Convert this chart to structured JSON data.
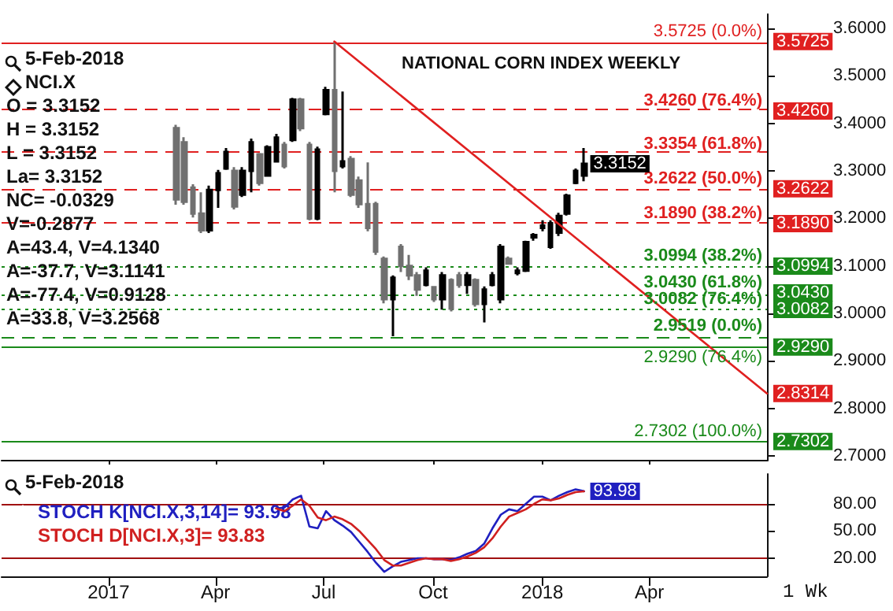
{
  "chart_data": [
    {
      "type": "candlestick",
      "title": "NATIONAL CORN INDEX WEEKLY",
      "marker": "none",
      "tick_labels": "y",
      "colors": [
        "#707070",
        "#707070",
        "#707070",
        "#707070",
        "#000000",
        "#000000",
        "#000000",
        "#707070",
        "#000000",
        "#000000",
        "#707070",
        "#000000",
        "#000000",
        "#707070",
        "#000000",
        "#707070",
        "#707070",
        "#000000",
        "#000000",
        "#707070",
        "#000000",
        "#707070",
        "#707070",
        "#707070",
        "#707070",
        "#707070",
        "#000000",
        "#707070",
        "#707070",
        "#707070",
        "#000000",
        "#707070",
        "#000000",
        "#707070",
        "#707070",
        "#000000",
        "#707070",
        "#000000",
        "#000000",
        "#000000",
        "#707070",
        "#000000",
        "#000000",
        "#000000",
        "#000000",
        "#000000",
        "#000000",
        "#000000",
        "#000000",
        "#000000"
      ],
      "x": [
        "2017-02-27",
        "2017-03-06",
        "2017-03-13",
        "2017-03-20",
        "2017-03-27",
        "2017-04-03",
        "2017-04-10",
        "2017-04-17",
        "2017-04-24",
        "2017-05-01",
        "2017-05-08",
        "2017-05-15",
        "2017-05-22",
        "2017-05-29",
        "2017-06-05",
        "2017-06-12",
        "2017-06-19",
        "2017-06-26",
        "2017-07-03",
        "2017-07-10",
        "2017-07-17",
        "2017-07-24",
        "2017-07-31",
        "2017-08-07",
        "2017-08-14",
        "2017-08-21",
        "2017-08-28",
        "2017-09-04",
        "2017-09-11",
        "2017-09-18",
        "2017-09-25",
        "2017-10-02",
        "2017-10-09",
        "2017-10-16",
        "2017-10-23",
        "2017-10-30",
        "2017-11-06",
        "2017-11-13",
        "2017-11-20",
        "2017-11-27",
        "2017-12-04",
        "2017-12-11",
        "2017-12-18",
        "2017-12-25",
        "2018-01-01",
        "2018-01-08",
        "2018-01-15",
        "2018-01-22",
        "2018-01-29",
        "2018-02-05"
      ],
      "ohlc": [
        [
          3.39,
          3.397,
          3.229,
          3.24
        ],
        [
          3.36,
          3.371,
          3.229,
          3.235
        ],
        [
          3.265,
          3.272,
          3.202,
          3.21
        ],
        [
          3.21,
          3.255,
          3.169,
          3.175
        ],
        [
          3.175,
          3.269,
          3.169,
          3.26
        ],
        [
          3.26,
          3.302,
          3.222,
          3.295
        ],
        [
          3.305,
          3.348,
          3.302,
          3.34
        ],
        [
          3.3,
          3.308,
          3.219,
          3.225
        ],
        [
          3.25,
          3.308,
          3.245,
          3.3
        ],
        [
          3.3,
          3.368,
          3.255,
          3.36
        ],
        [
          3.335,
          3.338,
          3.269,
          3.275
        ],
        [
          3.29,
          3.354,
          3.288,
          3.35
        ],
        [
          3.32,
          3.378,
          3.318,
          3.37
        ],
        [
          3.355,
          3.361,
          3.305,
          3.31
        ],
        [
          3.365,
          3.454,
          3.361,
          3.45
        ],
        [
          3.45,
          3.454,
          3.384,
          3.39
        ],
        [
          3.355,
          3.361,
          3.196,
          3.2
        ],
        [
          3.2,
          3.351,
          3.196,
          3.345
        ],
        [
          3.42,
          3.477,
          3.417,
          3.47
        ],
        [
          3.47,
          3.5725,
          3.255,
          3.3
        ],
        [
          3.31,
          3.467,
          3.305,
          3.32
        ],
        [
          3.325,
          3.331,
          3.245,
          3.25
        ],
        [
          3.28,
          3.288,
          3.222,
          3.23
        ],
        [
          3.23,
          3.318,
          3.173,
          3.18
        ],
        [
          3.23,
          3.235,
          3.123,
          3.13
        ],
        [
          3.115,
          3.12,
          3.021,
          3.03
        ],
        [
          3.03,
          3.08,
          2.9519,
          3.075
        ],
        [
          3.14,
          3.146,
          3.087,
          3.1
        ],
        [
          3.1,
          3.123,
          3.07,
          3.08
        ],
        [
          3.08,
          3.087,
          3.037,
          3.05
        ],
        [
          3.06,
          3.097,
          3.057,
          3.09
        ],
        [
          3.055,
          3.057,
          3.024,
          3.03
        ],
        [
          3.03,
          3.087,
          3.008,
          3.08
        ],
        [
          3.07,
          3.074,
          3.004,
          3.01
        ],
        [
          3.08,
          3.087,
          3.054,
          3.06
        ],
        [
          3.06,
          3.087,
          3.041,
          3.08
        ],
        [
          3.07,
          3.074,
          3.014,
          3.02
        ],
        [
          3.02,
          3.057,
          2.981,
          3.05
        ],
        [
          3.06,
          3.087,
          3.057,
          3.08
        ],
        [
          3.03,
          3.146,
          3.021,
          3.14
        ],
        [
          3.115,
          3.12,
          3.103,
          3.105
        ],
        [
          3.085,
          3.097,
          3.08,
          3.09
        ],
        [
          3.09,
          3.153,
          3.087,
          3.15
        ],
        [
          3.16,
          3.169,
          3.153,
          3.165
        ],
        [
          3.18,
          3.196,
          3.173,
          3.185
        ],
        [
          3.14,
          3.196,
          3.136,
          3.19
        ],
        [
          3.17,
          3.212,
          3.163,
          3.205
        ],
        [
          3.21,
          3.252,
          3.206,
          3.248
        ],
        [
          3.275,
          3.305,
          3.272,
          3.3
        ],
        [
          3.29,
          3.348,
          3.278,
          3.3152
        ]
      ],
      "series": [
        {
          "type": "line",
          "color": "#e02020",
          "x": [
            "2017-07-10",
            "2018-07-09"
          ],
          "values": [
            3.5725,
            2.8314
          ],
          "value_labels": [
            null,
            "2.8314"
          ]
        }
      ],
      "xlim": [
        "2016-10-03",
        "2018-07-09"
      ],
      "xticks": [
        {
          "value": "2017-01-01",
          "label": null
        },
        {
          "value": "2017-04-01",
          "label": null
        },
        {
          "value": "2017-07-01",
          "label": null
        },
        {
          "value": "2017-10-01",
          "label": null
        },
        {
          "value": "2018-01-01",
          "label": null
        },
        {
          "value": "2018-04-01",
          "label": null
        }
      ],
      "ylim": [
        2.69,
        3.63
      ],
      "yticks": [
        {
          "value": 2.7,
          "label": "2.7000"
        },
        {
          "value": 2.8,
          "label": "2.8000"
        },
        {
          "value": 2.9,
          "label": "2.9000"
        },
        {
          "value": 3.0,
          "label": "3.0000"
        },
        {
          "value": 3.1,
          "label": "3.1000"
        },
        {
          "value": 3.2,
          "label": "3.2000"
        },
        {
          "value": 3.3,
          "label": "3.3000"
        },
        {
          "value": 3.4,
          "label": "3.4000"
        },
        {
          "value": 3.5,
          "label": "3.5000"
        },
        {
          "value": 3.6,
          "label": "3.6000"
        }
      ],
      "ref_lines": [
        {
          "axis": "y",
          "value": 3.5725,
          "label": "3.5725 (0.0%)",
          "color": "#e02020",
          "line_style": "solid"
        },
        {
          "axis": "y",
          "value": 3.426,
          "label": "3.4260 (76.4%)",
          "color": "#e02020",
          "line_style": "dashed"
        },
        {
          "axis": "y",
          "value": 3.3354,
          "label": "3.3354 (61.8%)",
          "color": "#e02020",
          "line_style": "dashed"
        },
        {
          "axis": "y",
          "value": 3.2622,
          "label": "3.2622 (50.0%)",
          "color": "#e02020",
          "line_style": "dashed"
        },
        {
          "axis": "y",
          "value": 3.189,
          "label": "3.1890 (38.2%)",
          "color": "#e02020",
          "line_style": "dashed"
        },
        {
          "axis": "y",
          "value": 3.0994,
          "label": "3.0994 (38.2%)",
          "color": "#1a8a1a",
          "line_style": "dotted"
        },
        {
          "axis": "y",
          "value": 3.043,
          "label": "3.0430 (61.8%)",
          "color": "#1a8a1a",
          "line_style": "dotted"
        },
        {
          "axis": "y",
          "value": 3.0082,
          "label": "3.0082 (76.4%)",
          "color": "#1a8a1a",
          "line_style": "dotted"
        },
        {
          "axis": "y",
          "value": 2.9519,
          "label": "2.9519 (0.0%)",
          "color": "#1a8a1a",
          "line_style": "dashed"
        },
        {
          "axis": "y",
          "value": 2.929,
          "label": "2.9290 (76.4%)",
          "color": "#1a8a1a",
          "line_style": "solid"
        },
        {
          "axis": "y",
          "value": 2.7302,
          "label": "2.7302 (100.0%)",
          "color": "#1a8a1a",
          "line_style": "solid"
        }
      ],
      "annotations": [
        "5-Feb-2018",
        "NCI.X",
        "O = 3.3152",
        "H = 3.3152",
        "L = 3.3152",
        "La= 3.3152",
        "NC= -0.0329",
        "V=-0.2877",
        "A=43.4, V=4.1340",
        "A=-37.7, V=3.1141",
        "A=-77.4, V=0.9128",
        "A=33.8, V=3.2568",
        {
          "text": "3.5725",
          "x": "2018-07-09",
          "y": 3.5725
        },
        {
          "text": "3.4260",
          "x": "2018-07-09",
          "y": 3.426
        },
        {
          "text": "3.3152",
          "x": "2018-02-05",
          "y": 3.3152
        },
        {
          "text": "3.2622",
          "x": "2018-07-09",
          "y": 3.2622
        },
        {
          "text": "3.1890",
          "x": "2018-07-09",
          "y": 3.189
        },
        {
          "text": "3.0994",
          "x": "2018-07-09",
          "y": 3.0994
        },
        {
          "text": "3.0430",
          "x": "2018-07-09",
          "y": 3.043
        },
        {
          "text": "3.0082",
          "x": "2018-07-09",
          "y": 3.0082
        },
        {
          "text": "2.9290",
          "x": "2018-07-09",
          "y": 2.929
        },
        {
          "text": "2.7302",
          "x": "2018-07-09",
          "y": 2.7302
        }
      ]
    },
    {
      "type": "line",
      "marker": "none",
      "legend": "top left",
      "xlabel": "1 Wk",
      "x": [
        "2017-05-22",
        "2017-05-29",
        "2017-06-05",
        "2017-06-12",
        "2017-06-19",
        "2017-06-26",
        "2017-07-03",
        "2017-07-10",
        "2017-07-17",
        "2017-07-24",
        "2017-07-31",
        "2017-08-07",
        "2017-08-14",
        "2017-08-21",
        "2017-08-28",
        "2017-09-04",
        "2017-09-11",
        "2017-09-18",
        "2017-09-25",
        "2017-10-02",
        "2017-10-09",
        "2017-10-16",
        "2017-10-23",
        "2017-10-30",
        "2017-11-06",
        "2017-11-13",
        "2017-11-20",
        "2017-11-27",
        "2017-12-04",
        "2017-12-11",
        "2017-12-18",
        "2017-12-25",
        "2018-01-01",
        "2018-01-08",
        "2018-01-15",
        "2018-01-22",
        "2018-01-29",
        "2018-02-05"
      ],
      "series": [
        {
          "name": "STOCH K[NCI.X,3,14]= 93.98",
          "color": "#2020c0",
          "values": [
            75,
            76,
            85,
            89,
            55,
            53,
            72,
            62,
            56,
            49,
            38,
            27,
            15,
            5,
            11,
            16,
            18,
            20,
            20,
            19,
            19,
            18,
            21,
            25,
            28,
            36,
            53,
            68,
            74,
            72,
            80,
            88,
            88,
            84,
            89,
            93,
            96,
            93.98
          ],
          "value_labels": [
            null,
            null,
            null,
            null,
            null,
            null,
            null,
            null,
            null,
            null,
            null,
            null,
            null,
            null,
            null,
            null,
            null,
            null,
            null,
            null,
            null,
            null,
            null,
            null,
            null,
            null,
            null,
            null,
            null,
            null,
            null,
            null,
            null,
            null,
            null,
            null,
            null,
            "93.98"
          ]
        },
        {
          "name": "STOCH D[NCI.X,3]= 93.83",
          "color": "#d02020",
          "values": [
            75,
            72,
            78,
            85,
            78,
            65,
            62,
            66,
            63,
            58,
            50,
            40,
            30,
            18,
            12,
            12,
            15,
            18,
            20,
            19,
            19,
            17,
            19,
            22,
            26,
            32,
            42,
            55,
            66,
            70,
            74,
            80,
            85,
            84,
            86,
            90,
            93,
            93.83
          ]
        }
      ],
      "xlim": [
        "2016-10-03",
        "2018-07-09"
      ],
      "xticks": [
        {
          "value": "2017-01-01",
          "label": "2017"
        },
        {
          "value": "2017-04-01",
          "label": "Apr"
        },
        {
          "value": "2017-07-01",
          "label": "Jul"
        },
        {
          "value": "2017-10-01",
          "label": "Oct"
        },
        {
          "value": "2018-01-01",
          "label": "2018"
        },
        {
          "value": "2018-04-01",
          "label": "Apr"
        }
      ],
      "ylim": [
        0,
        113
      ],
      "yticks": [
        {
          "value": 20,
          "label": "20.00"
        },
        {
          "value": 50,
          "label": "50.00"
        },
        {
          "value": 80,
          "label": "80.00"
        }
      ],
      "ref_lines": [
        {
          "axis": "y",
          "value": 80,
          "color": "#a01010"
        },
        {
          "axis": "y",
          "value": 20,
          "color": "#a01010"
        }
      ],
      "annotations": [
        "5-Feb-2018"
      ]
    }
  ]
}
